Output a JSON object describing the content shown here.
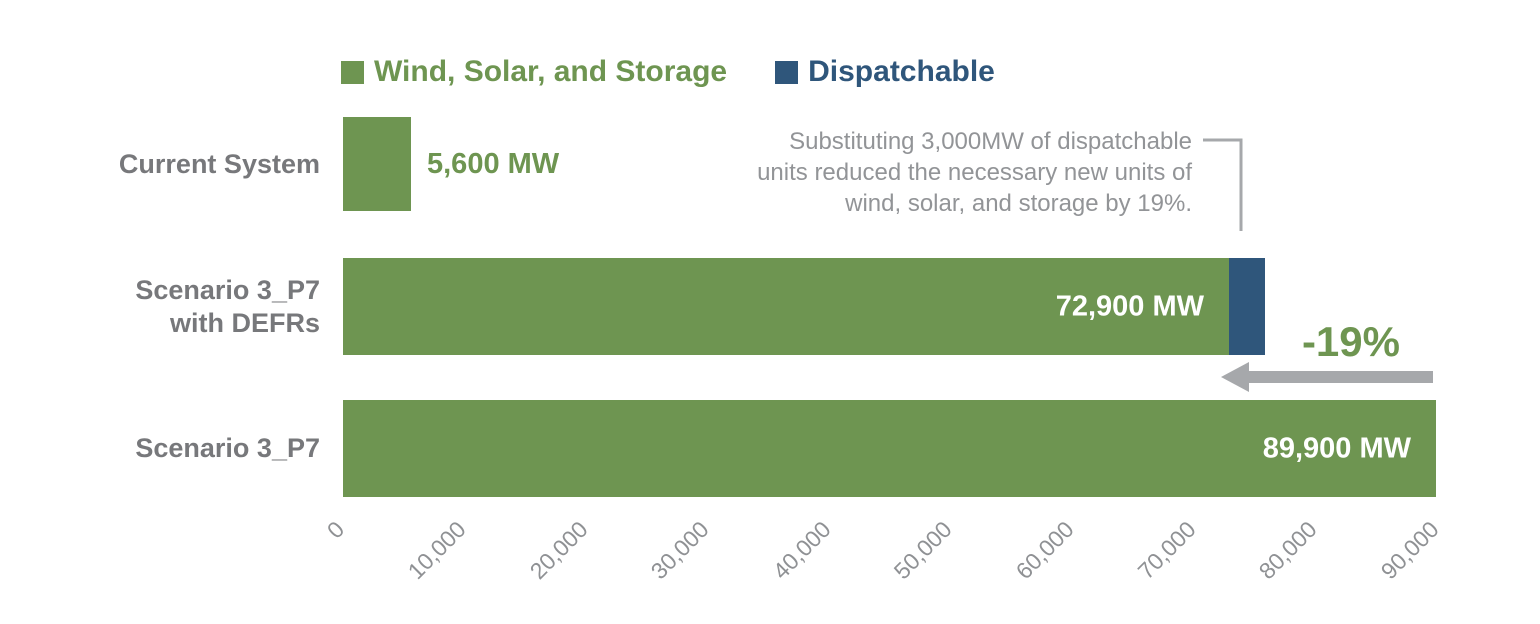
{
  "legend": {
    "items": [
      {
        "label": "Wind, Solar, and Storage",
        "color": "#6E9551"
      },
      {
        "label": "Dispatchable",
        "color": "#2F567B"
      }
    ]
  },
  "chart_data": {
    "type": "bar",
    "orientation": "horizontal",
    "categories": [
      "Current System",
      "Scenario 3_P7 with DEFRs",
      "Scenario 3_P7"
    ],
    "category_lines": [
      [
        "Current System"
      ],
      [
        "Scenario 3_P7",
        "with DEFRs"
      ],
      [
        "Scenario 3_P7"
      ]
    ],
    "series": [
      {
        "name": "Wind, Solar, and Storage",
        "color": "#6E9551",
        "values": [
          5600,
          72900,
          89900
        ]
      },
      {
        "name": "Dispatchable",
        "color": "#2F567B",
        "values": [
          0,
          3000,
          0
        ]
      }
    ],
    "bar_labels": [
      "5,600 MW",
      "72,900 MW",
      "89,900 MW"
    ],
    "unit": "MW",
    "xlim": [
      0,
      90000
    ],
    "x_ticks": [
      0,
      10000,
      20000,
      30000,
      40000,
      50000,
      60000,
      70000,
      80000,
      90000
    ],
    "x_tick_labels": [
      "0",
      "10,000",
      "20,000",
      "30,000",
      "40,000",
      "50,000",
      "60,000",
      "70,000",
      "80,000",
      "90,000"
    ],
    "legend_position": "top",
    "grid": false
  },
  "annotation": {
    "lines": [
      "Substituting 3,000MW of dispatchable",
      "units reduced the necessary new units of",
      "wind, solar, and storage by 19%."
    ]
  },
  "arrow": {
    "label": "-19%"
  },
  "colors": {
    "green": "#6E9551",
    "blue": "#2F567B",
    "category_text": "#77787B",
    "annotation_text": "#929497",
    "axis_text": "#8F9194",
    "arrow": "#A6A8AB",
    "callout_line": "#A6A8AB",
    "value_inside_text": "#FFFFFF"
  }
}
